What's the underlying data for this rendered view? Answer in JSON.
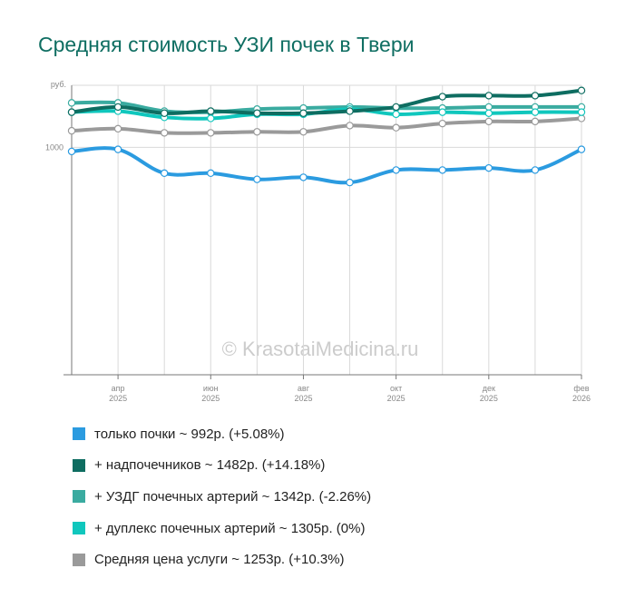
{
  "colors": {
    "title": "#0f6e62",
    "grid": "#d9d9d9",
    "axis": "#777777",
    "tick_text": "#888888",
    "watermark": "#c8c8c8"
  },
  "chart_data": {
    "type": "line",
    "title": "Средняя стоимость УЗИ почек в Твери",
    "ylabel": "руб.",
    "watermark": "© KrasotaiMedicina.ru",
    "ylim": [
      780,
      1060
    ],
    "y_reference": 1000,
    "y_ticks": [
      "1000"
    ],
    "x": [
      0,
      1,
      2,
      3,
      4,
      5,
      6,
      7,
      8,
      9,
      10,
      11
    ],
    "x_ticks": [
      {
        "index": 1,
        "month": "апр",
        "year": "2025"
      },
      {
        "index": 3,
        "month": "июн",
        "year": "2025"
      },
      {
        "index": 5,
        "month": "авг",
        "year": "2025"
      },
      {
        "index": 7,
        "month": "окт",
        "year": "2025"
      },
      {
        "index": 9,
        "month": "дек",
        "year": "2025"
      },
      {
        "index": 11,
        "month": "фев",
        "year": "2026"
      }
    ],
    "series": [
      {
        "legend": "только почки ~ 992р. (+5.08%)",
        "color": "#2b9be0",
        "values": [
          996,
          998,
          975,
          975,
          969,
          971,
          966,
          978,
          978,
          980,
          978,
          998
        ]
      },
      {
        "legend": "+ надпочечников ~ 1482р. (+14.18%)",
        "color": "#0e6d61",
        "values": [
          1034,
          1039,
          1033,
          1035,
          1033,
          1033,
          1035,
          1039,
          1049,
          1050,
          1050,
          1055
        ]
      },
      {
        "legend": "+ УЗДГ почечных артерий ~ 1342р. (-2.26%)",
        "color": "#3aaba0",
        "values": [
          1043,
          1043,
          1035,
          1034,
          1037,
          1038,
          1039,
          1038,
          1038,
          1039,
          1039,
          1039
        ]
      },
      {
        "legend": "+ дуплекс почечных артерий ~ 1305р. (0%)",
        "color": "#10c7bd",
        "values": [
          1034,
          1035,
          1029,
          1028,
          1032,
          1032,
          1037,
          1032,
          1034,
          1033,
          1034,
          1034
        ]
      },
      {
        "legend": "Средняя цена услуги ~ 1253р. (+10.3%)",
        "color": "#9a9a9a",
        "values": [
          1016,
          1018,
          1014,
          1014,
          1015,
          1015,
          1021,
          1019,
          1023,
          1025,
          1025,
          1028
        ]
      }
    ]
  }
}
